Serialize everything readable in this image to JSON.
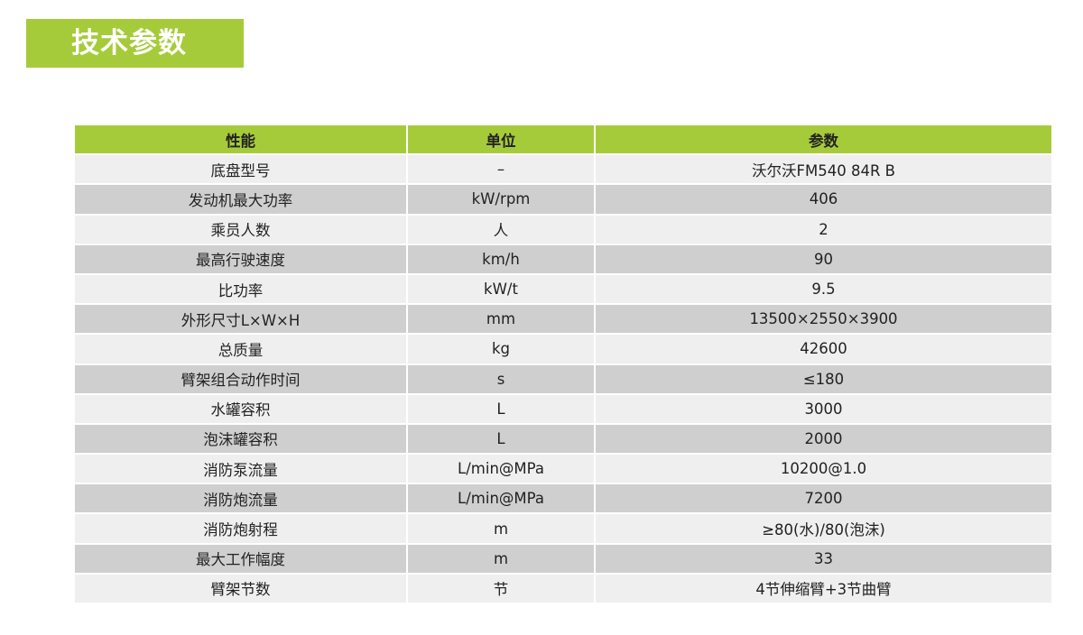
{
  "title": "技术参数",
  "colors": {
    "accent": "#a6cb3a",
    "row_light": "#efefef",
    "row_dark": "#cfcfcf"
  },
  "table": {
    "headers": [
      "性能",
      "单位",
      "参数"
    ],
    "rows": [
      [
        "底盘型号",
        "–",
        "沃尔沃FM540 84R B"
      ],
      [
        "发动机最大功率",
        "kW/rpm",
        "406"
      ],
      [
        "乘员人数",
        "人",
        "2"
      ],
      [
        "最高行驶速度",
        "km/h",
        "90"
      ],
      [
        "比功率",
        "kW/t",
        "9.5"
      ],
      [
        "外形尺寸L×W×H",
        "mm",
        "13500×2550×3900"
      ],
      [
        "总质量",
        "kg",
        "42600"
      ],
      [
        "臂架组合动作时间",
        "s",
        "≤180"
      ],
      [
        "水罐容积",
        "L",
        "3000"
      ],
      [
        "泡沫罐容积",
        "L",
        "2000"
      ],
      [
        "消防泵流量",
        "L/min@MPa",
        "10200@1.0"
      ],
      [
        "消防炮流量",
        "L/min@MPa",
        "7200"
      ],
      [
        "消防炮射程",
        "m",
        "≥80(水)/80(泡沫)"
      ],
      [
        "最大工作幅度",
        "m",
        "33"
      ],
      [
        "臂架节数",
        "节",
        "4节伸缩臂+3节曲臂"
      ]
    ]
  }
}
